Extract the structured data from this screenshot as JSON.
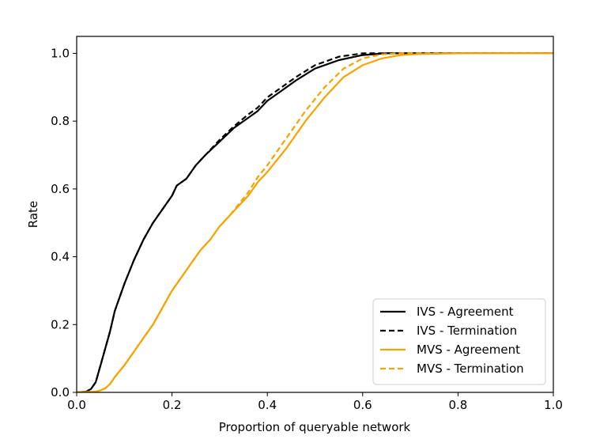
{
  "chart_data": {
    "type": "line",
    "title": "",
    "xlabel": "Proportion of queryable network",
    "ylabel": "Rate",
    "xlim": [
      0.0,
      1.0
    ],
    "ylim": [
      0.0,
      1.05
    ],
    "xticks": [
      0.0,
      0.2,
      0.4,
      0.6,
      0.8,
      1.0
    ],
    "yticks": [
      0.0,
      0.2,
      0.4,
      0.6,
      0.8,
      1.0
    ],
    "xtick_labels": [
      "0.0",
      "0.2",
      "0.4",
      "0.6",
      "0.8",
      "1.0"
    ],
    "ytick_labels": [
      "0.0",
      "0.2",
      "0.4",
      "0.6",
      "0.8",
      "1.0"
    ],
    "grid": false,
    "legend_position": "bottom-right",
    "series": [
      {
        "name": "IVS - Agreement",
        "color": "#000000",
        "style": "solid",
        "x": [
          0.0,
          0.02,
          0.03,
          0.04,
          0.05,
          0.06,
          0.07,
          0.08,
          0.1,
          0.12,
          0.14,
          0.16,
          0.18,
          0.2,
          0.21,
          0.23,
          0.25,
          0.27,
          0.3,
          0.33,
          0.36,
          0.38,
          0.4,
          0.43,
          0.46,
          0.5,
          0.55,
          0.6,
          0.65,
          0.7,
          1.0
        ],
        "y": [
          0.0,
          0.002,
          0.01,
          0.03,
          0.08,
          0.13,
          0.18,
          0.24,
          0.32,
          0.39,
          0.45,
          0.5,
          0.54,
          0.58,
          0.61,
          0.63,
          0.67,
          0.7,
          0.74,
          0.78,
          0.81,
          0.83,
          0.86,
          0.89,
          0.92,
          0.955,
          0.98,
          0.995,
          1.0,
          1.0,
          1.0
        ]
      },
      {
        "name": "IVS - Termination",
        "color": "#000000",
        "style": "dashed",
        "x": [
          0.0,
          0.02,
          0.03,
          0.04,
          0.05,
          0.06,
          0.07,
          0.08,
          0.1,
          0.12,
          0.14,
          0.16,
          0.18,
          0.2,
          0.21,
          0.23,
          0.25,
          0.27,
          0.3,
          0.33,
          0.36,
          0.38,
          0.4,
          0.43,
          0.46,
          0.5,
          0.55,
          0.6,
          0.63,
          0.7,
          1.0
        ],
        "y": [
          0.0,
          0.002,
          0.01,
          0.03,
          0.08,
          0.13,
          0.18,
          0.24,
          0.32,
          0.39,
          0.45,
          0.5,
          0.54,
          0.58,
          0.61,
          0.63,
          0.67,
          0.7,
          0.745,
          0.785,
          0.82,
          0.84,
          0.87,
          0.9,
          0.93,
          0.965,
          0.99,
          1.0,
          1.0,
          1.0,
          1.0
        ]
      },
      {
        "name": "MVS - Agreement",
        "color": "#f5a300",
        "style": "solid",
        "x": [
          0.0,
          0.04,
          0.05,
          0.06,
          0.07,
          0.08,
          0.1,
          0.12,
          0.14,
          0.16,
          0.18,
          0.2,
          0.22,
          0.24,
          0.26,
          0.28,
          0.3,
          0.32,
          0.34,
          0.36,
          0.38,
          0.4,
          0.44,
          0.48,
          0.52,
          0.56,
          0.6,
          0.64,
          0.68,
          0.72,
          0.8,
          1.0
        ],
        "y": [
          0.0,
          0.002,
          0.006,
          0.012,
          0.025,
          0.045,
          0.08,
          0.12,
          0.16,
          0.2,
          0.25,
          0.3,
          0.34,
          0.38,
          0.42,
          0.45,
          0.49,
          0.52,
          0.55,
          0.58,
          0.62,
          0.65,
          0.72,
          0.8,
          0.87,
          0.93,
          0.965,
          0.985,
          0.995,
          0.998,
          1.0,
          1.0
        ]
      },
      {
        "name": "MVS - Termination",
        "color": "#f5a300",
        "style": "dashed",
        "x": [
          0.0,
          0.04,
          0.05,
          0.06,
          0.07,
          0.08,
          0.1,
          0.12,
          0.14,
          0.16,
          0.18,
          0.2,
          0.22,
          0.24,
          0.26,
          0.28,
          0.3,
          0.32,
          0.34,
          0.36,
          0.38,
          0.4,
          0.44,
          0.48,
          0.52,
          0.56,
          0.6,
          0.64,
          0.68,
          0.72,
          0.8,
          1.0
        ],
        "y": [
          0.0,
          0.002,
          0.006,
          0.012,
          0.025,
          0.045,
          0.08,
          0.12,
          0.16,
          0.2,
          0.25,
          0.3,
          0.34,
          0.38,
          0.42,
          0.45,
          0.49,
          0.52,
          0.555,
          0.59,
          0.635,
          0.67,
          0.75,
          0.83,
          0.9,
          0.955,
          0.985,
          0.997,
          1.0,
          1.0,
          1.0,
          1.0
        ]
      }
    ]
  }
}
